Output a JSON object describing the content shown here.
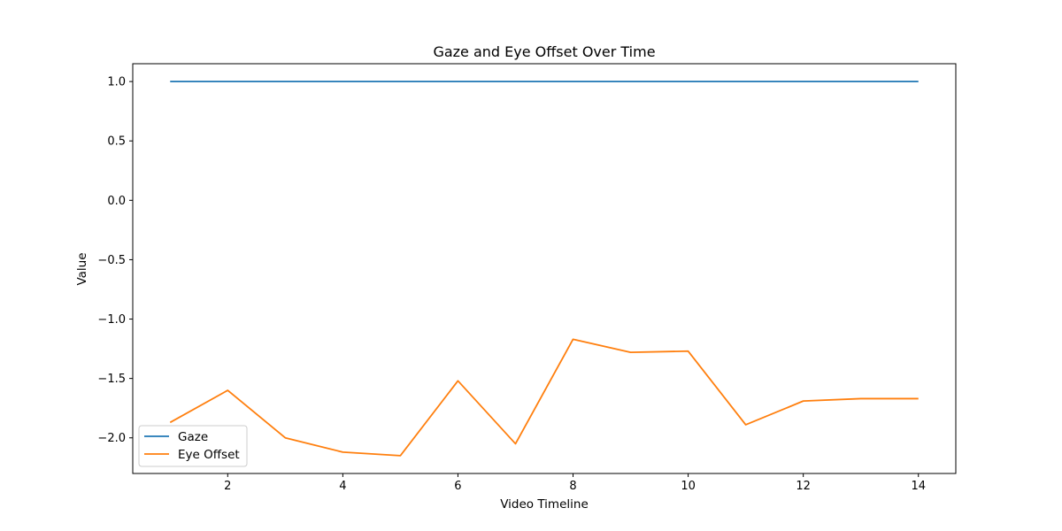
{
  "chart_data": {
    "type": "line",
    "title": "Gaze and Eye Offset Over Time",
    "xlabel": "Video Timeline",
    "ylabel": "Value",
    "xlim": [
      0.35,
      14.65
    ],
    "ylim": [
      -2.3,
      1.15
    ],
    "xticks": [
      2,
      4,
      6,
      8,
      10,
      12,
      14
    ],
    "xtick_labels": [
      "2",
      "4",
      "6",
      "8",
      "10",
      "12",
      "14"
    ],
    "yticks": [
      1.0,
      0.5,
      0.0,
      -0.5,
      -1.0,
      -1.5,
      -2.0
    ],
    "ytick_labels": [
      "1.0",
      "0.5",
      "0.0",
      "−0.5",
      "−1.0",
      "−1.5",
      "−2.0"
    ],
    "grid": false,
    "legend_position": "lower-left",
    "x": [
      1,
      2,
      3,
      4,
      5,
      6,
      7,
      8,
      9,
      10,
      11,
      12,
      13,
      14
    ],
    "series": [
      {
        "name": "Gaze",
        "color": "#1f77b4",
        "values": [
          1.0,
          1.0,
          1.0,
          1.0,
          1.0,
          1.0,
          1.0,
          1.0,
          1.0,
          1.0,
          1.0,
          1.0,
          1.0,
          1.0
        ]
      },
      {
        "name": "Eye Offset",
        "color": "#ff7f0e",
        "values": [
          -1.87,
          -1.6,
          -2.0,
          -2.12,
          -2.15,
          -1.52,
          -2.05,
          -1.17,
          -1.28,
          -1.27,
          -1.89,
          -1.69,
          -1.67,
          -1.67
        ]
      }
    ]
  }
}
